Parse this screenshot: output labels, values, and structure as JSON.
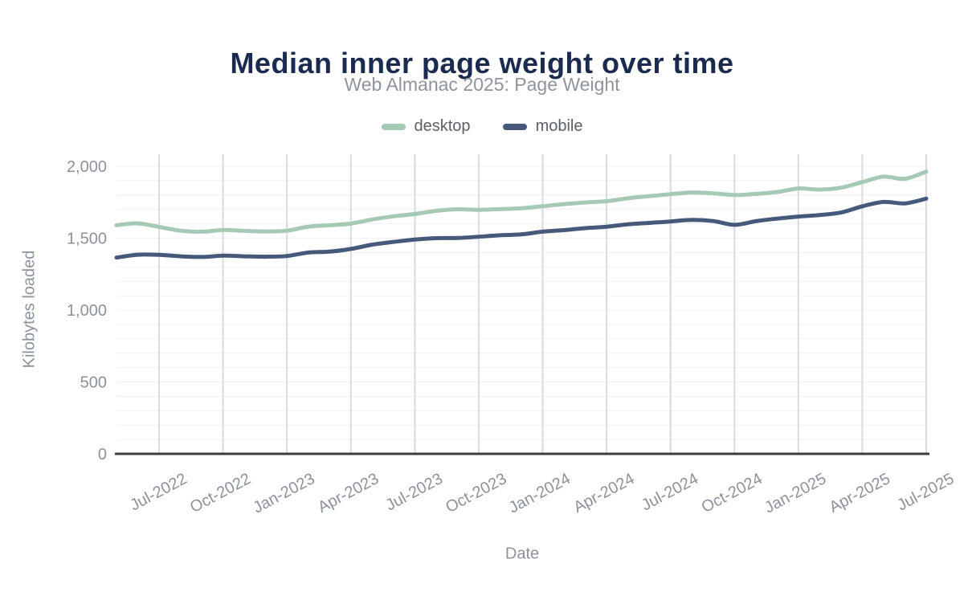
{
  "page": {
    "background": "#ffffff"
  },
  "style": {
    "title_color": "#1a2b4f",
    "subtitle_color": "#8f939b",
    "axis_label_color": "#8d929a",
    "legend_text_color": "#5b6067",
    "grid_vertical_color": "#d8dadd",
    "grid_horizontal_color": "#f0f1f3",
    "axis_line_color": "#3b3c41",
    "desktop_color": "#a5c9b4",
    "mobile_color": "#47597b"
  },
  "chart_data": {
    "type": "line",
    "title": "Median inner page weight over time",
    "subtitle": "Web Almanac 2025: Page Weight",
    "xlabel": "Date",
    "ylabel": "Kilobytes loaded",
    "legend_position": "top",
    "grid": true,
    "line_style": "smooth",
    "ylim": [
      0,
      2075
    ],
    "y_ticks": [
      0,
      500,
      1000,
      1500,
      2000
    ],
    "y_minor_grid_step": 100,
    "x": [
      "May-2022",
      "Jun-2022",
      "Jul-2022",
      "Aug-2022",
      "Sep-2022",
      "Oct-2022",
      "Nov-2022",
      "Dec-2022",
      "Jan-2023",
      "Feb-2023",
      "Mar-2023",
      "Apr-2023",
      "May-2023",
      "Jun-2023",
      "Jul-2023",
      "Aug-2023",
      "Sep-2023",
      "Oct-2023",
      "Nov-2023",
      "Dec-2023",
      "Jan-2024",
      "Feb-2024",
      "Mar-2024",
      "Apr-2024",
      "May-2024",
      "Jun-2024",
      "Jul-2024",
      "Aug-2024",
      "Sep-2024",
      "Oct-2024",
      "Nov-2024",
      "Dec-2024",
      "Jan-2025",
      "Feb-2025",
      "Mar-2025",
      "Apr-2025",
      "May-2025",
      "Jun-2025",
      "Jul-2025"
    ],
    "x_tick_labels": [
      "Jul-2022",
      "Oct-2022",
      "Jan-2023",
      "Apr-2023",
      "Jul-2023",
      "Oct-2023",
      "Jan-2024",
      "Apr-2024",
      "Jul-2024",
      "Oct-2024",
      "Jan-2025",
      "Apr-2025",
      "Jul-2025"
    ],
    "series": [
      {
        "name": "desktop",
        "color": "#a5c9b4",
        "values": [
          1590,
          1603,
          1578,
          1552,
          1545,
          1557,
          1551,
          1547,
          1552,
          1580,
          1590,
          1601,
          1630,
          1652,
          1668,
          1690,
          1701,
          1697,
          1702,
          1708,
          1722,
          1737,
          1748,
          1757,
          1777,
          1792,
          1806,
          1818,
          1812,
          1800,
          1808,
          1821,
          1845,
          1838,
          1851,
          1890,
          1928,
          1913,
          1963
        ]
      },
      {
        "name": "mobile",
        "color": "#47597b",
        "values": [
          1365,
          1385,
          1384,
          1374,
          1369,
          1378,
          1374,
          1371,
          1376,
          1400,
          1406,
          1425,
          1455,
          1474,
          1490,
          1500,
          1501,
          1510,
          1520,
          1526,
          1545,
          1556,
          1570,
          1580,
          1596,
          1606,
          1616,
          1627,
          1619,
          1593,
          1618,
          1636,
          1650,
          1661,
          1678,
          1722,
          1752,
          1742,
          1775
        ]
      }
    ]
  }
}
